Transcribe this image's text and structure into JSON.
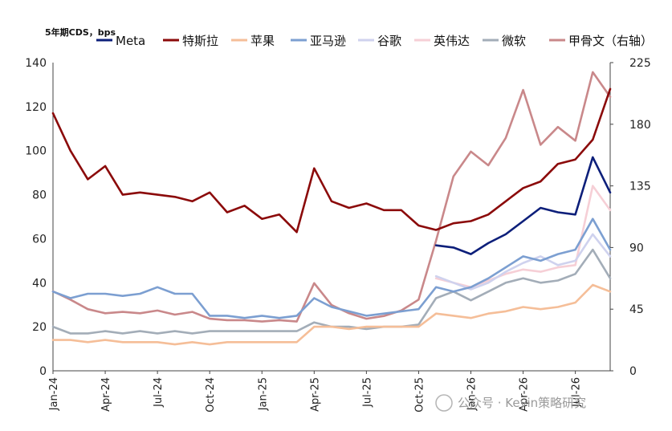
{
  "chart_data": {
    "type": "line",
    "unit_label": "5年期CDS，bps",
    "watermark": "公众号 · Kevin策略研究",
    "x_ticks": [
      "Jan-24",
      "Apr-24",
      "Jul-24",
      "Oct-24",
      "Jan-25",
      "Apr-25",
      "Jul-25",
      "Oct-25",
      "Jan-26",
      "Apr-26",
      "Jul-26"
    ],
    "x_range": [
      "2024-01",
      "2026-09"
    ],
    "y_left": {
      "min": 0,
      "max": 140,
      "ticks": [
        0,
        20,
        40,
        60,
        80,
        100,
        120,
        140
      ]
    },
    "y_right": {
      "min": 0,
      "max": 225,
      "ticks": [
        0,
        45,
        90,
        135,
        180,
        225
      ]
    },
    "series": [
      {
        "name": "Meta",
        "color": "#0d1f7a",
        "axis": "left",
        "points": [
          [
            "2025-11",
            57
          ],
          [
            "2025-12",
            56
          ],
          [
            "2026-01",
            53
          ],
          [
            "2026-02",
            58
          ],
          [
            "2026-03",
            62
          ],
          [
            "2026-04",
            68
          ],
          [
            "2026-05",
            74
          ],
          [
            "2026-06",
            72
          ],
          [
            "2026-07",
            71
          ],
          [
            "2026-08",
            97
          ],
          [
            "2026-09",
            81
          ]
        ]
      },
      {
        "name": "特斯拉",
        "color": "#8b0a0a",
        "axis": "left",
        "points": [
          [
            "2024-01",
            117
          ],
          [
            "2024-02",
            100
          ],
          [
            "2024-03",
            87
          ],
          [
            "2024-04",
            93
          ],
          [
            "2024-05",
            80
          ],
          [
            "2024-06",
            81
          ],
          [
            "2024-07",
            80
          ],
          [
            "2024-08",
            79
          ],
          [
            "2024-09",
            77
          ],
          [
            "2024-10",
            81
          ],
          [
            "2024-11",
            72
          ],
          [
            "2024-12",
            75
          ],
          [
            "2025-01",
            69
          ],
          [
            "2025-02",
            71
          ],
          [
            "2025-03",
            63
          ],
          [
            "2025-04",
            92
          ],
          [
            "2025-05",
            77
          ],
          [
            "2025-06",
            74
          ],
          [
            "2025-07",
            76
          ],
          [
            "2025-08",
            73
          ],
          [
            "2025-09",
            73
          ],
          [
            "2025-10",
            66
          ],
          [
            "2025-11",
            64
          ],
          [
            "2025-12",
            67
          ],
          [
            "2026-01",
            68
          ],
          [
            "2026-02",
            71
          ],
          [
            "2026-03",
            77
          ],
          [
            "2026-04",
            83
          ],
          [
            "2026-05",
            86
          ],
          [
            "2026-06",
            94
          ],
          [
            "2026-07",
            96
          ],
          [
            "2026-08",
            105
          ],
          [
            "2026-09",
            128
          ]
        ]
      },
      {
        "name": "苹果",
        "color": "#f5be98",
        "axis": "left",
        "points": [
          [
            "2024-01",
            14
          ],
          [
            "2024-02",
            14
          ],
          [
            "2024-03",
            13
          ],
          [
            "2024-04",
            14
          ],
          [
            "2024-05",
            13
          ],
          [
            "2024-06",
            13
          ],
          [
            "2024-07",
            13
          ],
          [
            "2024-08",
            12
          ],
          [
            "2024-09",
            13
          ],
          [
            "2024-10",
            12
          ],
          [
            "2024-11",
            13
          ],
          [
            "2024-12",
            13
          ],
          [
            "2025-01",
            13
          ],
          [
            "2025-02",
            13
          ],
          [
            "2025-03",
            13
          ],
          [
            "2025-04",
            20
          ],
          [
            "2025-05",
            20
          ],
          [
            "2025-06",
            19
          ],
          [
            "2025-07",
            20
          ],
          [
            "2025-08",
            20
          ],
          [
            "2025-09",
            20
          ],
          [
            "2025-10",
            20
          ],
          [
            "2025-11",
            26
          ],
          [
            "2025-12",
            25
          ],
          [
            "2026-01",
            24
          ],
          [
            "2026-02",
            26
          ],
          [
            "2026-03",
            27
          ],
          [
            "2026-04",
            29
          ],
          [
            "2026-05",
            28
          ],
          [
            "2026-06",
            29
          ],
          [
            "2026-07",
            31
          ],
          [
            "2026-08",
            39
          ],
          [
            "2026-09",
            36
          ]
        ]
      },
      {
        "name": "亚马逊",
        "color": "#7c9fd1",
        "axis": "left",
        "points": [
          [
            "2024-01",
            36
          ],
          [
            "2024-02",
            33
          ],
          [
            "2024-03",
            35
          ],
          [
            "2024-04",
            35
          ],
          [
            "2024-05",
            34
          ],
          [
            "2024-06",
            35
          ],
          [
            "2024-07",
            38
          ],
          [
            "2024-08",
            35
          ],
          [
            "2024-09",
            35
          ],
          [
            "2024-10",
            25
          ],
          [
            "2024-11",
            25
          ],
          [
            "2024-12",
            24
          ],
          [
            "2025-01",
            25
          ],
          [
            "2025-02",
            24
          ],
          [
            "2025-03",
            25
          ],
          [
            "2025-04",
            33
          ],
          [
            "2025-05",
            29
          ],
          [
            "2025-06",
            27
          ],
          [
            "2025-07",
            25
          ],
          [
            "2025-08",
            26
          ],
          [
            "2025-09",
            27
          ],
          [
            "2025-10",
            28
          ],
          [
            "2025-11",
            38
          ],
          [
            "2025-12",
            36
          ],
          [
            "2026-01",
            38
          ],
          [
            "2026-02",
            42
          ],
          [
            "2026-03",
            47
          ],
          [
            "2026-04",
            52
          ],
          [
            "2026-05",
            50
          ],
          [
            "2026-06",
            53
          ],
          [
            "2026-07",
            55
          ],
          [
            "2026-08",
            69
          ],
          [
            "2026-09",
            55
          ]
        ]
      },
      {
        "name": "谷歌",
        "color": "#cfd2ee",
        "axis": "left",
        "points": [
          [
            "2025-11",
            43
          ],
          [
            "2025-12",
            40
          ],
          [
            "2026-01",
            37
          ],
          [
            "2026-02",
            40
          ],
          [
            "2026-03",
            45
          ],
          [
            "2026-04",
            49
          ],
          [
            "2026-05",
            52
          ],
          [
            "2026-06",
            48
          ],
          [
            "2026-07",
            50
          ],
          [
            "2026-08",
            62
          ],
          [
            "2026-09",
            52
          ]
        ]
      },
      {
        "name": "英伟达",
        "color": "#f6cfd6",
        "axis": "left",
        "points": [
          [
            "2025-11",
            42
          ],
          [
            "2025-12",
            40
          ],
          [
            "2026-01",
            38
          ],
          [
            "2026-02",
            41
          ],
          [
            "2026-03",
            44
          ],
          [
            "2026-04",
            46
          ],
          [
            "2026-05",
            45
          ],
          [
            "2026-06",
            47
          ],
          [
            "2026-07",
            48
          ],
          [
            "2026-08",
            84
          ],
          [
            "2026-09",
            73
          ]
        ]
      },
      {
        "name": "微软",
        "color": "#a3adb8",
        "axis": "left",
        "points": [
          [
            "2024-01",
            20
          ],
          [
            "2024-02",
            17
          ],
          [
            "2024-03",
            17
          ],
          [
            "2024-04",
            18
          ],
          [
            "2024-05",
            17
          ],
          [
            "2024-06",
            18
          ],
          [
            "2024-07",
            17
          ],
          [
            "2024-08",
            18
          ],
          [
            "2024-09",
            17
          ],
          [
            "2024-10",
            18
          ],
          [
            "2024-11",
            18
          ],
          [
            "2024-12",
            18
          ],
          [
            "2025-01",
            18
          ],
          [
            "2025-02",
            18
          ],
          [
            "2025-03",
            18
          ],
          [
            "2025-04",
            22
          ],
          [
            "2025-05",
            20
          ],
          [
            "2025-06",
            20
          ],
          [
            "2025-07",
            19
          ],
          [
            "2025-08",
            20
          ],
          [
            "2025-09",
            20
          ],
          [
            "2025-10",
            21
          ],
          [
            "2025-11",
            33
          ],
          [
            "2025-12",
            36
          ],
          [
            "2026-01",
            32
          ],
          [
            "2026-02",
            36
          ],
          [
            "2026-03",
            40
          ],
          [
            "2026-04",
            42
          ],
          [
            "2026-05",
            40
          ],
          [
            "2026-06",
            41
          ],
          [
            "2026-07",
            44
          ],
          [
            "2026-08",
            55
          ],
          [
            "2026-09",
            42
          ]
        ]
      },
      {
        "name": "甲骨文（右轴）",
        "color": "#c9888a",
        "axis": "right",
        "points": [
          [
            "2024-01",
            58
          ],
          [
            "2024-02",
            52
          ],
          [
            "2024-03",
            45
          ],
          [
            "2024-04",
            42
          ],
          [
            "2024-05",
            43
          ],
          [
            "2024-06",
            42
          ],
          [
            "2024-07",
            44
          ],
          [
            "2024-08",
            41
          ],
          [
            "2024-09",
            43
          ],
          [
            "2024-10",
            38
          ],
          [
            "2024-11",
            37
          ],
          [
            "2024-12",
            37
          ],
          [
            "2025-01",
            36
          ],
          [
            "2025-02",
            37
          ],
          [
            "2025-03",
            36
          ],
          [
            "2025-04",
            64
          ],
          [
            "2025-05",
            48
          ],
          [
            "2025-06",
            42
          ],
          [
            "2025-07",
            38
          ],
          [
            "2025-08",
            40
          ],
          [
            "2025-09",
            44
          ],
          [
            "2025-10",
            52
          ],
          [
            "2025-11",
            95
          ],
          [
            "2025-12",
            142
          ],
          [
            "2026-01",
            160
          ],
          [
            "2026-02",
            150
          ],
          [
            "2026-03",
            170
          ],
          [
            "2026-04",
            205
          ],
          [
            "2026-05",
            165
          ],
          [
            "2026-06",
            178
          ],
          [
            "2026-07",
            168
          ],
          [
            "2026-08",
            218
          ],
          [
            "2026-09",
            200
          ]
        ]
      }
    ]
  }
}
